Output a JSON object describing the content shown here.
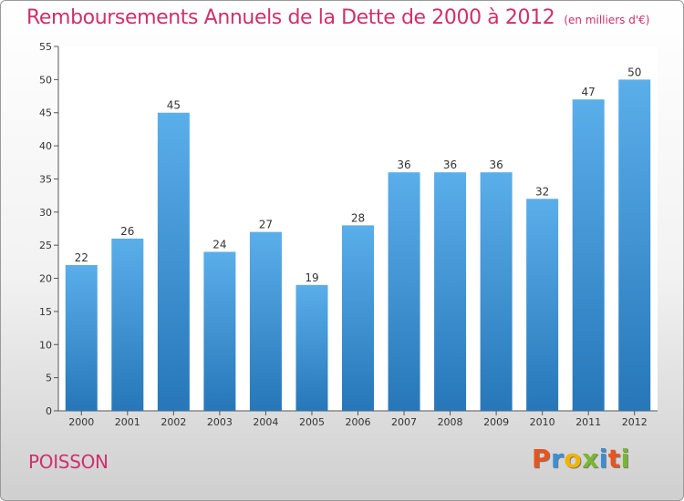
{
  "header": {
    "title": "Remboursements Annuels de la Dette de 2000 à 2012",
    "unit": "(en milliers d'€)"
  },
  "footer": {
    "commune": "POISSON",
    "logo_letters": [
      "P",
      "r",
      "o",
      "x",
      "i",
      "t",
      "i"
    ],
    "logo_colors": [
      "#e9541c",
      "#3b8fd6",
      "#f0b400",
      "#79b82d",
      "#3b8fd6",
      "#e9541c",
      "#79b82d"
    ]
  },
  "chart_data": {
    "type": "bar",
    "title": "Remboursements Annuels de la Dette de 2000 à 2012",
    "unit": "(en milliers d'€)",
    "categories": [
      "2000",
      "2001",
      "2002",
      "2003",
      "2004",
      "2005",
      "2006",
      "2007",
      "2008",
      "2009",
      "2010",
      "2011",
      "2012"
    ],
    "values": [
      22,
      26,
      45,
      24,
      27,
      19,
      28,
      36,
      36,
      36,
      32,
      47,
      50
    ],
    "ylim": [
      0,
      55
    ],
    "yticks": [
      0,
      5,
      10,
      15,
      20,
      25,
      30,
      35,
      40,
      45,
      50,
      55
    ],
    "grid": false,
    "colors": {
      "bar_top": "#5aaeea",
      "bar_bottom": "#2777b8",
      "axis": "#555555"
    }
  }
}
